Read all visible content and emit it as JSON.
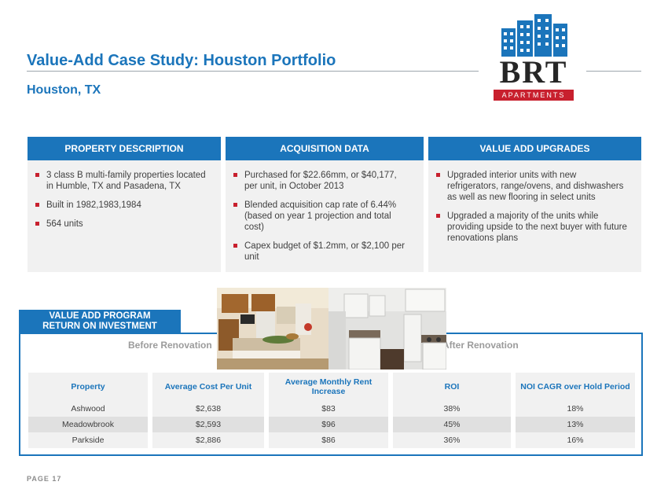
{
  "header": {
    "title": "Value-Add Case Study: Houston Portfolio",
    "subtitle": "Houston, TX"
  },
  "logo": {
    "text": "BRT",
    "band": "APARTMENTS",
    "colors": {
      "blue": "#1b75bb",
      "red": "#c8202e"
    }
  },
  "panels": [
    {
      "heading": "PROPERTY DESCRIPTION",
      "bullets": [
        "3 class B multi-family properties located in Humble, TX and Pasadena, TX",
        "Built in 1982,1983,1984",
        "564 units"
      ]
    },
    {
      "heading": "ACQUISITION DATA",
      "bullets": [
        "Purchased for $22.66mm, or $40,177, per unit, in October 2013",
        "Blended acquisition cap rate of 6.44% (based on year 1 projection and total cost)",
        "Capex budget of $1.2mm, or $2,100 per unit"
      ]
    },
    {
      "heading": "VALUE ADD UPGRADES",
      "bullets": [
        "Upgraded interior units with new refrigerators, range/ovens, and dishwashers as well as new flooring in select units",
        "Upgraded a majority of the units while providing upside to the next buyer with future renovations plans"
      ]
    }
  ],
  "roi": {
    "label_line1": "VALUE ADD PROGRAM",
    "label_line2": "RETURN ON INVESTMENT",
    "before": "Before Renovation",
    "after": "After Renovation",
    "columns": [
      "Property",
      "Average Cost Per Unit",
      "Average Monthly Rent Increase",
      "ROI",
      "NOI CAGR over Hold Period"
    ],
    "rows": [
      [
        "Ashwood",
        "$2,638",
        "$83",
        "38%",
        "18%"
      ],
      [
        "Meadowbrook",
        "$2,593",
        "$96",
        "45%",
        "13%"
      ],
      [
        "Parkside",
        "$2,886",
        "$86",
        "36%",
        "16%"
      ]
    ]
  },
  "footer": {
    "page": "PAGE 17"
  }
}
